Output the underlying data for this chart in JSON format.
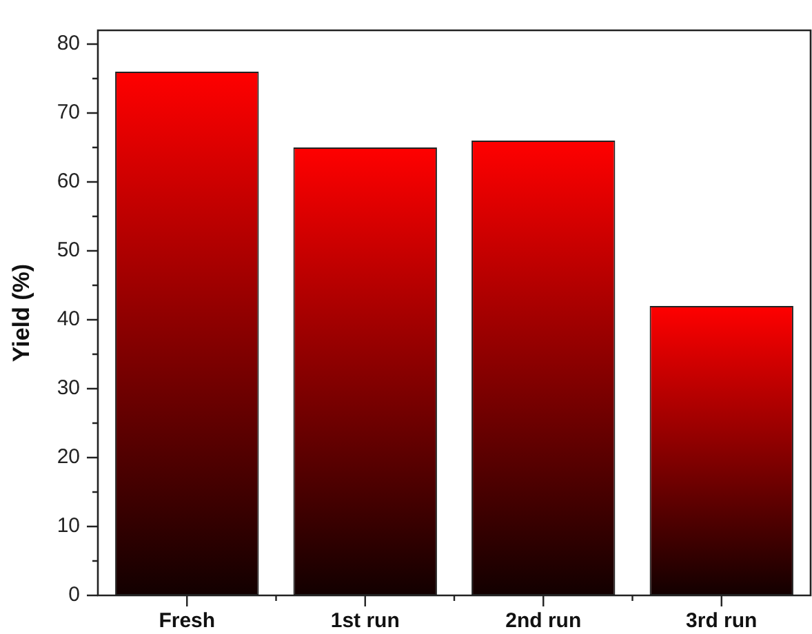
{
  "chart_data": {
    "type": "bar",
    "ylabel": "Yield (%)",
    "categories": [
      "Fresh",
      "1st run",
      "2nd run",
      "3rd run"
    ],
    "values": [
      76,
      65,
      66,
      42
    ],
    "color": "#ff0000",
    "ylim": [
      0,
      82
    ],
    "yticks": [
      0,
      {
        "value": 5,
        "label": null
      },
      10,
      {
        "value": 15,
        "label": null
      },
      20,
      {
        "value": 25,
        "label": null
      },
      30,
      {
        "value": 35,
        "label": null
      },
      40,
      {
        "value": 45,
        "label": null
      },
      50,
      {
        "value": 55,
        "label": null
      },
      60,
      {
        "value": 65,
        "label": null
      },
      70,
      {
        "value": 75,
        "label": null
      },
      80
    ]
  }
}
